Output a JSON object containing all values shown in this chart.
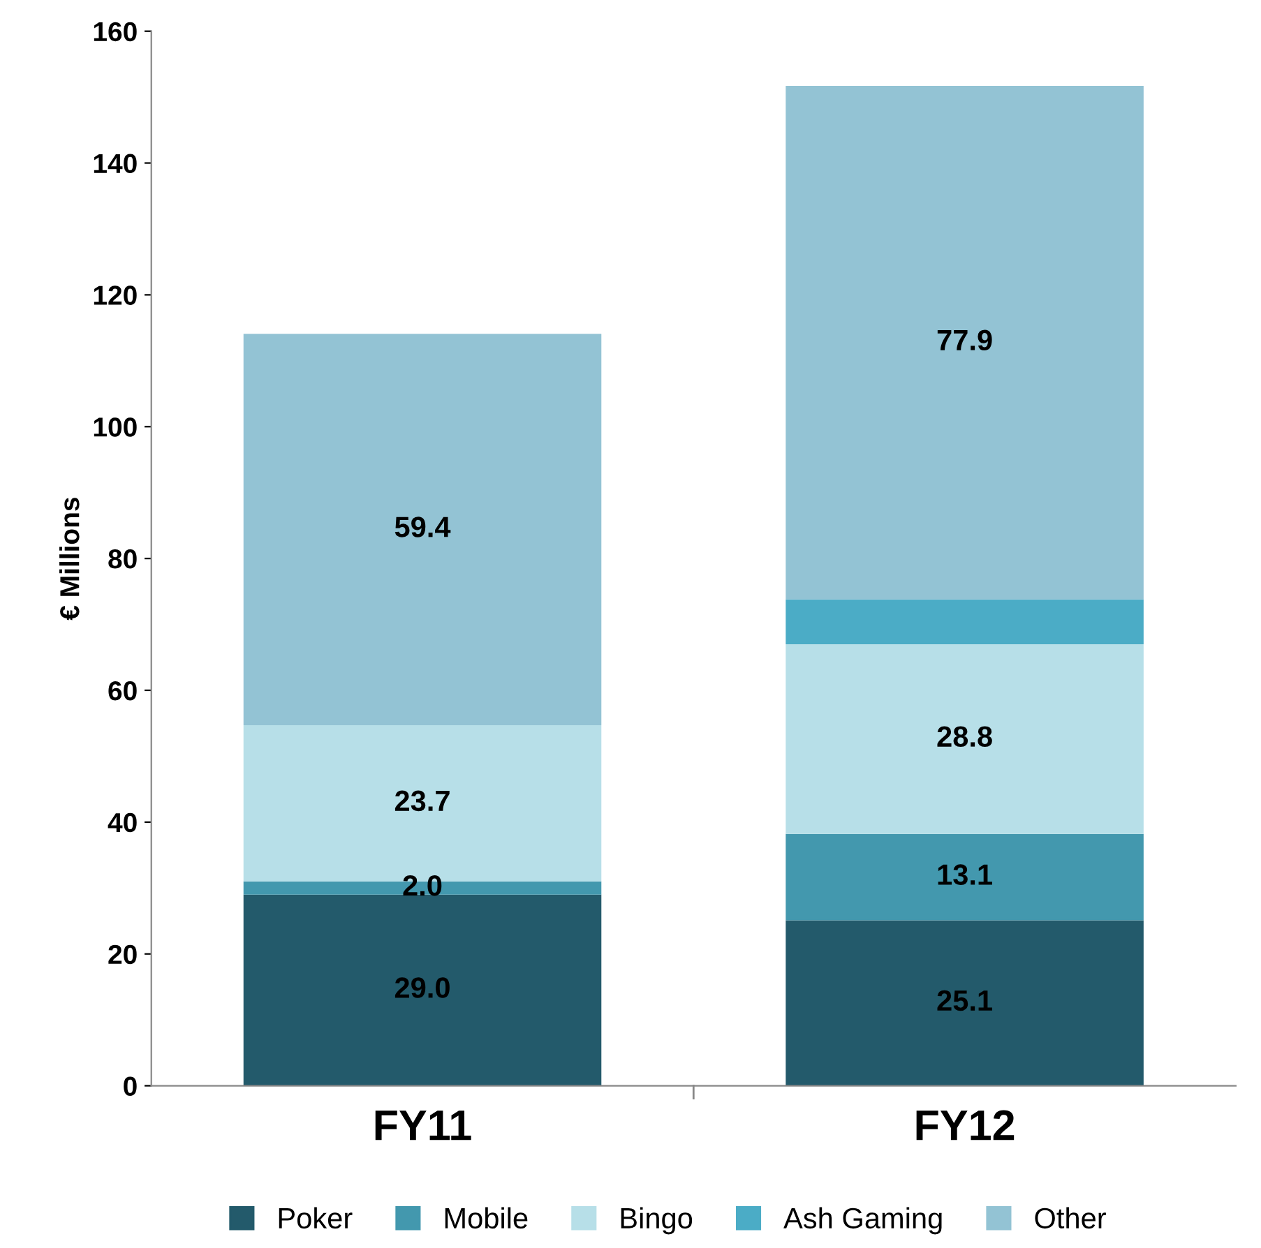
{
  "chart_data": {
    "type": "bar",
    "stacked": true,
    "ylabel": "€ Millions",
    "categories": [
      "FY11",
      "FY12"
    ],
    "ylim": [
      0,
      160
    ],
    "yticks": [
      0,
      20,
      40,
      60,
      80,
      100,
      120,
      140,
      160
    ],
    "grid": false,
    "legend": "bottom",
    "series": [
      {
        "name": "Poker",
        "color": "#235a6b",
        "values": [
          29.0,
          25.1
        ],
        "value_labels": [
          "29.0",
          "25.1"
        ]
      },
      {
        "name": "Mobile",
        "color": "#4398ae",
        "values": [
          2.0,
          13.1
        ],
        "value_labels": [
          "2.0",
          "13.1"
        ]
      },
      {
        "name": "Bingo",
        "color": "#b7dfe8",
        "values": [
          23.7,
          28.8
        ],
        "value_labels": [
          "23.7",
          "28.8"
        ]
      },
      {
        "name": "Ash Gaming",
        "color": "#4bacc6",
        "values": [
          0,
          6.8
        ],
        "value_labels": [
          null,
          null
        ]
      },
      {
        "name": "Other",
        "color": "#93c3d4",
        "values": [
          59.4,
          77.9
        ],
        "value_labels": [
          "59.4",
          "77.9"
        ]
      }
    ]
  }
}
